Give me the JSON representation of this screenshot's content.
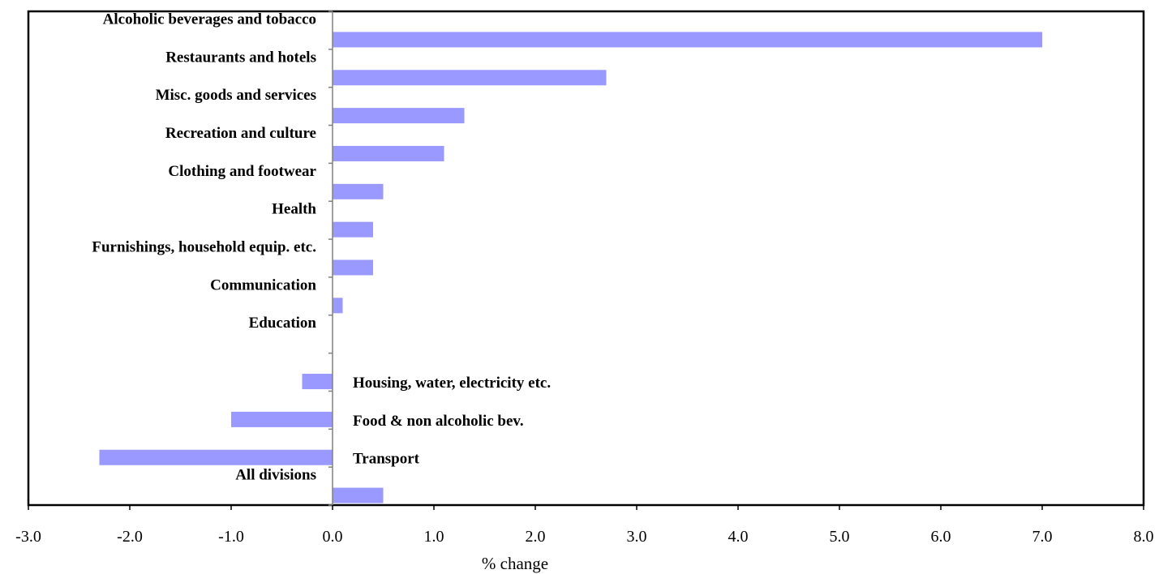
{
  "chart_data": {
    "type": "bar",
    "orientation": "horizontal",
    "categories": [
      "Alcoholic beverages and tobacco",
      "Restaurants and hotels",
      "Misc. goods and services",
      "Recreation and culture",
      "Clothing and footwear",
      "Health",
      "Furnishings, household equip. etc.",
      "Communication",
      "Education",
      "Housing, water, electricity etc.",
      "Food & non alcoholic bev.",
      "Transport",
      "All divisions"
    ],
    "values": [
      7.0,
      2.7,
      1.3,
      1.1,
      0.5,
      0.4,
      0.4,
      0.1,
      0.0,
      -0.3,
      -1.0,
      -2.3,
      0.5
    ],
    "xlim": [
      -3.0,
      8.0
    ],
    "x_ticks": [
      "-3.0",
      "-2.0",
      "-1.0",
      "0.0",
      "1.0",
      "2.0",
      "3.0",
      "4.0",
      "5.0",
      "6.0",
      "7.0",
      "8.0"
    ],
    "xlabel": "% change",
    "title": "",
    "legend": "none",
    "grid": false,
    "bar_color": "#9999ff"
  }
}
